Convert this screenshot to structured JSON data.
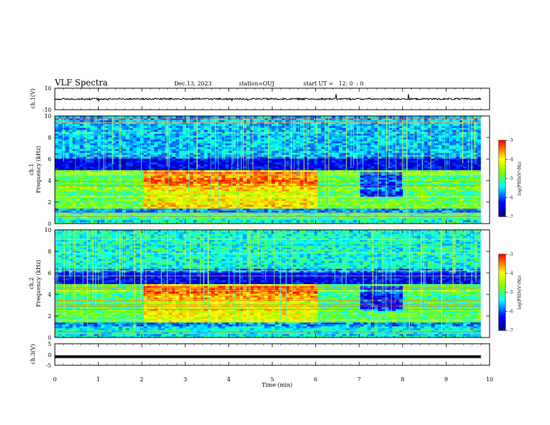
{
  "header": {
    "title": "VLF Spectra",
    "date": "Dec.13, 2023",
    "station": "station=OUJ",
    "start": "start UT =   12: 0  : 0"
  },
  "colors": {
    "waveform": "#000000",
    "colormap": [
      "#00008b",
      "#0000ff",
      "#00ffff",
      "#7fff00",
      "#ffff00",
      "#ff0000"
    ]
  },
  "chart_data": [
    {
      "type": "line",
      "name": "ch1-waveform",
      "ylabel": "ch.1(V)",
      "ylim": [
        -10,
        10
      ],
      "yticks": [
        "10",
        "-10"
      ],
      "xlim": [
        0,
        10
      ],
      "level_approx": 0,
      "grid": false
    },
    {
      "type": "heatmap",
      "name": "ch1-spectrogram",
      "ylabel_top": "ch.1",
      "ylabel": "Frequency (kHz)",
      "ylim": [
        0,
        10
      ],
      "yticks": [
        "0",
        "2",
        "4",
        "6",
        "8",
        "10"
      ],
      "xlim": [
        0,
        10
      ],
      "data_end_min": 9.8,
      "colorbar": {
        "label": "log(PSD)(V²/Hz)",
        "range": [
          -7,
          -3
        ],
        "ticks": [
          "-3",
          "-4",
          "-5",
          "-6",
          "-7"
        ]
      },
      "notable": {
        "emission_band_khz": [
          1.5,
          5.0
        ],
        "intense_interval_min": [
          2.0,
          6.0
        ],
        "quiet_interval_min": [
          7.0,
          8.0
        ]
      }
    },
    {
      "type": "heatmap",
      "name": "ch2-spectrogram",
      "ylabel_top": "ch.2",
      "ylabel": "Frequency (kHz)",
      "ylim": [
        0,
        10
      ],
      "yticks": [
        "0",
        "2",
        "4",
        "6",
        "8",
        "10"
      ],
      "xlim": [
        0,
        10
      ],
      "data_end_min": 9.8,
      "colorbar": {
        "label": "log(PSD)(V²/Hz)",
        "range": [
          -7,
          -3
        ],
        "ticks": [
          "-3",
          "-4",
          "-5",
          "-6",
          "-7"
        ]
      },
      "notable": {
        "emission_band_khz": [
          1.5,
          5.0
        ],
        "intense_interval_min": [
          2.0,
          6.0
        ],
        "quiet_interval_min": [
          7.0,
          8.0
        ]
      }
    },
    {
      "type": "line",
      "name": "ch3-waveform",
      "ylabel": "ch.3(V)",
      "ylim": [
        -5,
        5
      ],
      "yticks": [
        "5",
        "0",
        "-5"
      ],
      "xlim": [
        0,
        10
      ],
      "level_approx": -1,
      "grid": false
    }
  ],
  "xaxis": {
    "label": "Time (min)",
    "ticks": [
      "0",
      "1",
      "2",
      "3",
      "4",
      "5",
      "6",
      "7",
      "8",
      "9",
      "10"
    ]
  }
}
